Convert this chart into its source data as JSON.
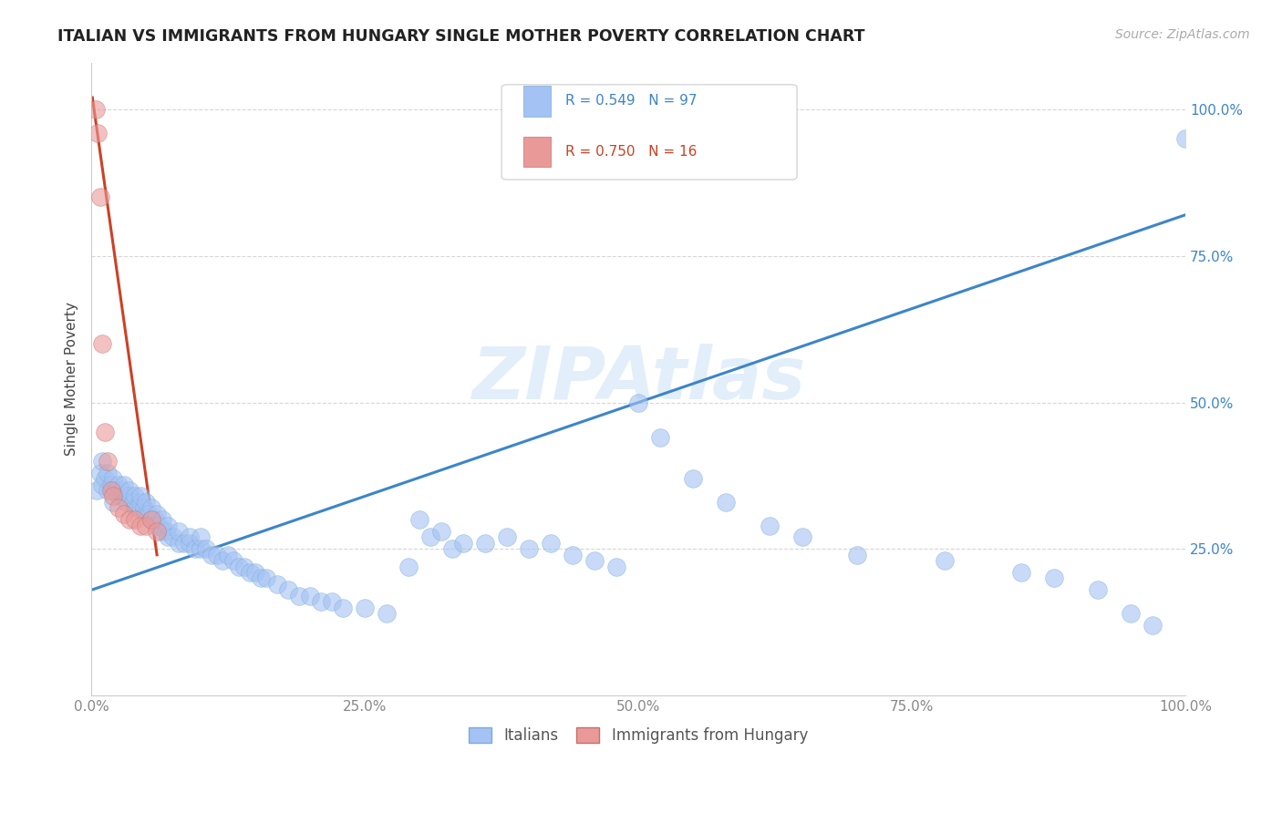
{
  "title": "ITALIAN VS IMMIGRANTS FROM HUNGARY SINGLE MOTHER POVERTY CORRELATION CHART",
  "source": "Source: ZipAtlas.com",
  "ylabel": "Single Mother Poverty",
  "xlim": [
    0,
    1.0
  ],
  "ylim": [
    0.0,
    1.08
  ],
  "xticks": [
    0.0,
    0.25,
    0.5,
    0.75,
    1.0
  ],
  "xtick_labels": [
    "0.0%",
    "25.0%",
    "50.0%",
    "75.0%",
    "100.0%"
  ],
  "ytick_values": [
    0.25,
    0.5,
    0.75,
    1.0
  ],
  "ytick_labels": [
    "25.0%",
    "50.0%",
    "75.0%",
    "100.0%"
  ],
  "blue_R": 0.549,
  "blue_N": 97,
  "pink_R": 0.75,
  "pink_N": 16,
  "blue_color": "#a4c2f4",
  "pink_color": "#ea9999",
  "blue_line_color": "#3d85c8",
  "pink_line_color": "#cc4125",
  "watermark": "ZIPAtlas",
  "legend_label_blue": "Italians",
  "legend_label_pink": "Immigrants from Hungary",
  "blue_scatter_x": [
    0.005,
    0.008,
    0.01,
    0.01,
    0.012,
    0.015,
    0.015,
    0.018,
    0.02,
    0.02,
    0.022,
    0.025,
    0.025,
    0.028,
    0.03,
    0.03,
    0.032,
    0.035,
    0.035,
    0.038,
    0.04,
    0.04,
    0.042,
    0.045,
    0.045,
    0.048,
    0.05,
    0.05,
    0.052,
    0.055,
    0.055,
    0.058,
    0.06,
    0.06,
    0.062,
    0.065,
    0.065,
    0.068,
    0.07,
    0.07,
    0.075,
    0.08,
    0.08,
    0.085,
    0.09,
    0.09,
    0.095,
    0.1,
    0.1,
    0.105,
    0.11,
    0.115,
    0.12,
    0.125,
    0.13,
    0.135,
    0.14,
    0.145,
    0.15,
    0.155,
    0.16,
    0.17,
    0.18,
    0.19,
    0.2,
    0.21,
    0.22,
    0.23,
    0.25,
    0.27,
    0.29,
    0.3,
    0.31,
    0.32,
    0.33,
    0.34,
    0.36,
    0.38,
    0.4,
    0.42,
    0.44,
    0.46,
    0.48,
    0.5,
    0.52,
    0.55,
    0.58,
    0.62,
    0.65,
    0.7,
    0.78,
    0.85,
    0.88,
    0.92,
    0.95,
    0.97,
    1.0
  ],
  "blue_scatter_y": [
    0.35,
    0.38,
    0.36,
    0.4,
    0.37,
    0.35,
    0.38,
    0.36,
    0.33,
    0.37,
    0.35,
    0.34,
    0.36,
    0.35,
    0.34,
    0.36,
    0.33,
    0.34,
    0.35,
    0.33,
    0.32,
    0.34,
    0.32,
    0.33,
    0.34,
    0.32,
    0.31,
    0.33,
    0.31,
    0.3,
    0.32,
    0.3,
    0.29,
    0.31,
    0.29,
    0.28,
    0.3,
    0.28,
    0.27,
    0.29,
    0.27,
    0.26,
    0.28,
    0.26,
    0.26,
    0.27,
    0.25,
    0.25,
    0.27,
    0.25,
    0.24,
    0.24,
    0.23,
    0.24,
    0.23,
    0.22,
    0.22,
    0.21,
    0.21,
    0.2,
    0.2,
    0.19,
    0.18,
    0.17,
    0.17,
    0.16,
    0.16,
    0.15,
    0.15,
    0.14,
    0.22,
    0.3,
    0.27,
    0.28,
    0.25,
    0.26,
    0.26,
    0.27,
    0.25,
    0.26,
    0.24,
    0.23,
    0.22,
    0.5,
    0.44,
    0.37,
    0.33,
    0.29,
    0.27,
    0.24,
    0.23,
    0.21,
    0.2,
    0.18,
    0.14,
    0.12,
    0.95
  ],
  "pink_scatter_x": [
    0.004,
    0.006,
    0.008,
    0.01,
    0.012,
    0.015,
    0.018,
    0.02,
    0.025,
    0.03,
    0.035,
    0.04,
    0.045,
    0.05,
    0.055,
    0.06
  ],
  "pink_scatter_y": [
    1.0,
    0.96,
    0.85,
    0.6,
    0.45,
    0.4,
    0.35,
    0.34,
    0.32,
    0.31,
    0.3,
    0.3,
    0.29,
    0.29,
    0.3,
    0.28
  ],
  "blue_line_x": [
    0.0,
    1.0
  ],
  "blue_line_y": [
    0.18,
    0.82
  ],
  "pink_line_x": [
    0.001,
    0.06
  ],
  "pink_line_y": [
    1.02,
    0.24
  ]
}
